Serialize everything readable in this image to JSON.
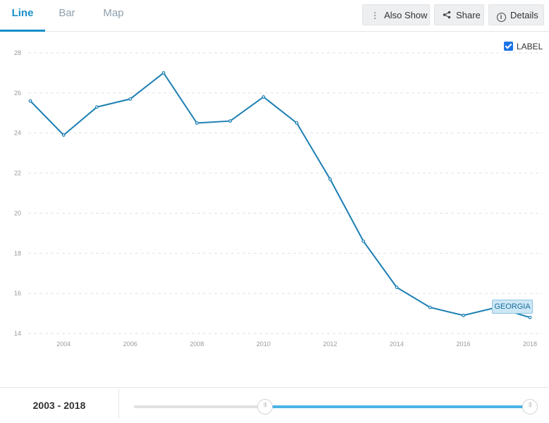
{
  "tabs": [
    {
      "label": "Line",
      "active": true
    },
    {
      "label": "Bar",
      "active": false
    },
    {
      "label": "Map",
      "active": false
    }
  ],
  "toolbar": {
    "also_show": {
      "label": "Also Show",
      "icon": "kebab-vertical-icon"
    },
    "share": {
      "label": "Share",
      "icon": "share-icon"
    },
    "details": {
      "label": "Details",
      "icon": "info-icon"
    }
  },
  "label_toggle": {
    "label": "LABEL",
    "checked": true
  },
  "colors": {
    "accent": "#1790c8",
    "series": "#1a7eb3",
    "slider_fill": "#4ab3e6",
    "checkbox": "#1a73e8"
  },
  "chart_data": {
    "type": "line",
    "title": "",
    "xlabel": "",
    "ylabel": "",
    "x": [
      2003,
      2004,
      2005,
      2006,
      2007,
      2008,
      2009,
      2010,
      2011,
      2012,
      2013,
      2014,
      2015,
      2016,
      2017,
      2018
    ],
    "series": [
      {
        "name": "GEORGIA",
        "values": [
          25.6,
          23.9,
          25.3,
          25.7,
          27.0,
          24.5,
          24.6,
          25.8,
          24.5,
          21.7,
          18.6,
          16.3,
          15.3,
          14.9,
          15.3,
          14.8
        ]
      }
    ],
    "ylim": [
      14,
      28
    ],
    "yticks": [
      14,
      16,
      18,
      20,
      22,
      24,
      26,
      28
    ],
    "xticks": [
      2004,
      2006,
      2008,
      2010,
      2012,
      2014,
      2016,
      2018
    ],
    "grid": true,
    "end_label": "GEORGIA"
  },
  "range": {
    "label": "2003 - 2018",
    "start": 2003,
    "end": 2018
  }
}
